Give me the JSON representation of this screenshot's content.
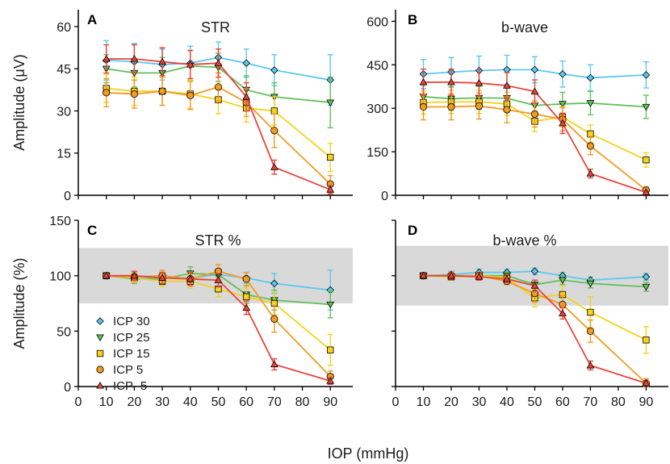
{
  "figure": {
    "shared_xlabel": "IOP (mmHg)"
  },
  "colors": {
    "ICP 30": "#5bc8f0",
    "ICP 25": "#62c05a",
    "ICP 15": "#f6d21a",
    "ICP 5": "#f39a22",
    "ICP -5": "#e8443a",
    "band": "#d9d9d9"
  },
  "legend": {
    "entries": [
      {
        "label": "ICP 30",
        "marker": "diamond"
      },
      {
        "label": "ICP 25",
        "marker": "triangle-down"
      },
      {
        "label": "ICP 15",
        "marker": "square"
      },
      {
        "label": "ICP 5",
        "marker": "circle"
      },
      {
        "label": "ICP -5",
        "marker": "triangle-up"
      }
    ],
    "placement": "lower-left of panel C"
  },
  "chart_data": [
    {
      "panel": "A",
      "type": "line",
      "title": "STR",
      "ylabel": "Amplitude (μV)",
      "xlabel": "",
      "xlim": [
        0,
        98
      ],
      "ylim": [
        0,
        66
      ],
      "xticks": [
        0,
        10,
        20,
        30,
        40,
        50,
        60,
        70,
        80,
        90
      ],
      "xtick_labels_shown": false,
      "yticks": [
        0,
        15,
        30,
        45,
        60
      ],
      "ytick_labels_shown": true,
      "x": [
        10,
        20,
        30,
        40,
        50,
        60,
        70,
        90
      ],
      "series": [
        {
          "name": "ICP 30",
          "marker": "diamond",
          "values": [
            48,
            47.5,
            46.5,
            47,
            49,
            47,
            44.5,
            41
          ],
          "errors": [
            7,
            6.5,
            5.5,
            6,
            5.5,
            5,
            5.5,
            9
          ]
        },
        {
          "name": "ICP 25",
          "marker": "triangle-down",
          "values": [
            45,
            43.5,
            43.5,
            46,
            45.5,
            37.5,
            35,
            33
          ],
          "errors": [
            5,
            5,
            5.5,
            5.5,
            5,
            5,
            5,
            9
          ]
        },
        {
          "name": "ICP 15",
          "marker": "square",
          "values": [
            38,
            37,
            37,
            36,
            34,
            31,
            30,
            13.5
          ],
          "errors": [
            5,
            5,
            5,
            5,
            5,
            5,
            5,
            5
          ]
        },
        {
          "name": "ICP 5",
          "marker": "circle",
          "values": [
            36.5,
            36,
            37,
            35.5,
            38.5,
            33,
            23,
            4
          ],
          "errors": [
            5,
            5,
            5,
            5,
            5,
            5,
            6,
            3
          ]
        },
        {
          "name": "ICP -5",
          "marker": "triangle-up",
          "values": [
            48.5,
            48.5,
            47.5,
            46.5,
            47,
            35,
            10,
            2
          ],
          "errors": [
            5,
            5,
            5,
            5,
            5,
            5,
            2.5,
            1.5
          ]
        }
      ]
    },
    {
      "panel": "B",
      "type": "line",
      "title": "b-wave",
      "ylabel": "",
      "xlabel": "",
      "xlim": [
        0,
        98
      ],
      "ylim": [
        0,
        640
      ],
      "xticks": [
        0,
        10,
        20,
        30,
        40,
        50,
        60,
        70,
        80,
        90
      ],
      "xtick_labels_shown": false,
      "yticks": [
        0,
        150,
        300,
        450,
        600
      ],
      "ytick_labels_shown": true,
      "x": [
        10,
        20,
        30,
        40,
        50,
        60,
        70,
        90
      ],
      "series": [
        {
          "name": "ICP 30",
          "marker": "diamond",
          "values": [
            418,
            425,
            430,
            433,
            433,
            418,
            405,
            415
          ],
          "errors": [
            50,
            50,
            50,
            50,
            45,
            45,
            45,
            45
          ]
        },
        {
          "name": "ICP 25",
          "marker": "triangle-down",
          "values": [
            340,
            333,
            336,
            335,
            310,
            315,
            318,
            305
          ],
          "errors": [
            40,
            40,
            40,
            40,
            40,
            40,
            40,
            40
          ]
        },
        {
          "name": "ICP 15",
          "marker": "square",
          "values": [
            320,
            322,
            322,
            315,
            255,
            270,
            212,
            122
          ],
          "errors": [
            40,
            40,
            40,
            40,
            35,
            35,
            30,
            25
          ]
        },
        {
          "name": "ICP 5",
          "marker": "circle",
          "values": [
            305,
            305,
            308,
            295,
            280,
            262,
            170,
            18
          ],
          "errors": [
            45,
            45,
            45,
            45,
            45,
            40,
            30,
            10
          ]
        },
        {
          "name": "ICP -5",
          "marker": "triangle-up",
          "values": [
            390,
            390,
            387,
            378,
            358,
            248,
            75,
            10
          ],
          "errors": [
            45,
            45,
            45,
            45,
            40,
            35,
            15,
            5
          ]
        }
      ]
    },
    {
      "panel": "C",
      "type": "line",
      "title": "STR %",
      "ylabel": "Amplitude (%)",
      "xlabel": "",
      "xlim": [
        0,
        98
      ],
      "ylim": [
        0,
        150
      ],
      "xticks": [
        0,
        10,
        20,
        30,
        40,
        50,
        60,
        70,
        80,
        90
      ],
      "xtick_labels_shown": true,
      "yticks": [
        0,
        50,
        100,
        150
      ],
      "ytick_labels_shown": true,
      "band": [
        75,
        125
      ],
      "x": [
        10,
        20,
        30,
        40,
        50,
        60,
        70,
        90
      ],
      "series": [
        {
          "name": "ICP 30",
          "marker": "diamond",
          "values": [
            100,
            98,
            98,
            98,
            101,
            98,
            93,
            87
          ],
          "errors": [
            1,
            4,
            5,
            6,
            5,
            5,
            9,
            18
          ]
        },
        {
          "name": "ICP 25",
          "marker": "triangle-down",
          "values": [
            100,
            97,
            97,
            102,
            101,
            83,
            78,
            74
          ],
          "errors": [
            1,
            4,
            5,
            6,
            5,
            8,
            9,
            12
          ]
        },
        {
          "name": "ICP 15",
          "marker": "square",
          "values": [
            100,
            98,
            95,
            95,
            88,
            81,
            75,
            33
          ],
          "errors": [
            1,
            4,
            5,
            6,
            7,
            8,
            10,
            14
          ]
        },
        {
          "name": "ICP 5",
          "marker": "circle",
          "values": [
            100,
            99,
            100,
            97,
            104,
            97,
            61,
            9
          ],
          "errors": [
            1,
            4,
            5,
            6,
            6,
            6,
            12,
            5
          ]
        },
        {
          "name": "ICP -5",
          "marker": "triangle-up",
          "values": [
            100,
            100,
            98,
            97,
            96,
            71,
            20,
            5
          ],
          "errors": [
            1,
            4,
            5,
            6,
            6,
            6,
            5,
            3
          ]
        }
      ]
    },
    {
      "panel": "D",
      "type": "line",
      "title": "b-wave %",
      "ylabel": "",
      "xlabel": "",
      "xlim": [
        0,
        98
      ],
      "ylim": [
        0,
        150
      ],
      "xticks": [
        0,
        10,
        20,
        30,
        40,
        50,
        60,
        70,
        80,
        90
      ],
      "xtick_labels_shown": true,
      "yticks": [
        0,
        50,
        100,
        150
      ],
      "ytick_labels_shown": false,
      "band": [
        73,
        127
      ],
      "x": [
        10,
        20,
        30,
        40,
        50,
        60,
        70,
        90
      ],
      "series": [
        {
          "name": "ICP 30",
          "marker": "diamond",
          "values": [
            100,
            101,
            103,
            103,
            104,
            100,
            96,
            99
          ],
          "errors": [
            1,
            3,
            3,
            3,
            3,
            3,
            3,
            3
          ]
        },
        {
          "name": "ICP 25",
          "marker": "triangle-down",
          "values": [
            100,
            99,
            100,
            100,
            92,
            96,
            93,
            90
          ],
          "errors": [
            1,
            3,
            3,
            3,
            4,
            4,
            4,
            4
          ]
        },
        {
          "name": "ICP 15",
          "marker": "square",
          "values": [
            100,
            99,
            100,
            98,
            80,
            83,
            67,
            42
          ],
          "errors": [
            1,
            3,
            3,
            3,
            8,
            8,
            14,
            12
          ]
        },
        {
          "name": "ICP 5",
          "marker": "circle",
          "values": [
            100,
            100,
            100,
            95,
            84,
            74,
            50,
            3
          ],
          "errors": [
            1,
            3,
            3,
            3,
            8,
            8,
            10,
            4
          ]
        },
        {
          "name": "ICP -5",
          "marker": "triangle-up",
          "values": [
            100,
            100,
            99,
            97,
            91,
            66,
            19,
            3
          ],
          "errors": [
            1,
            3,
            3,
            3,
            5,
            5,
            4,
            2
          ]
        }
      ]
    }
  ]
}
